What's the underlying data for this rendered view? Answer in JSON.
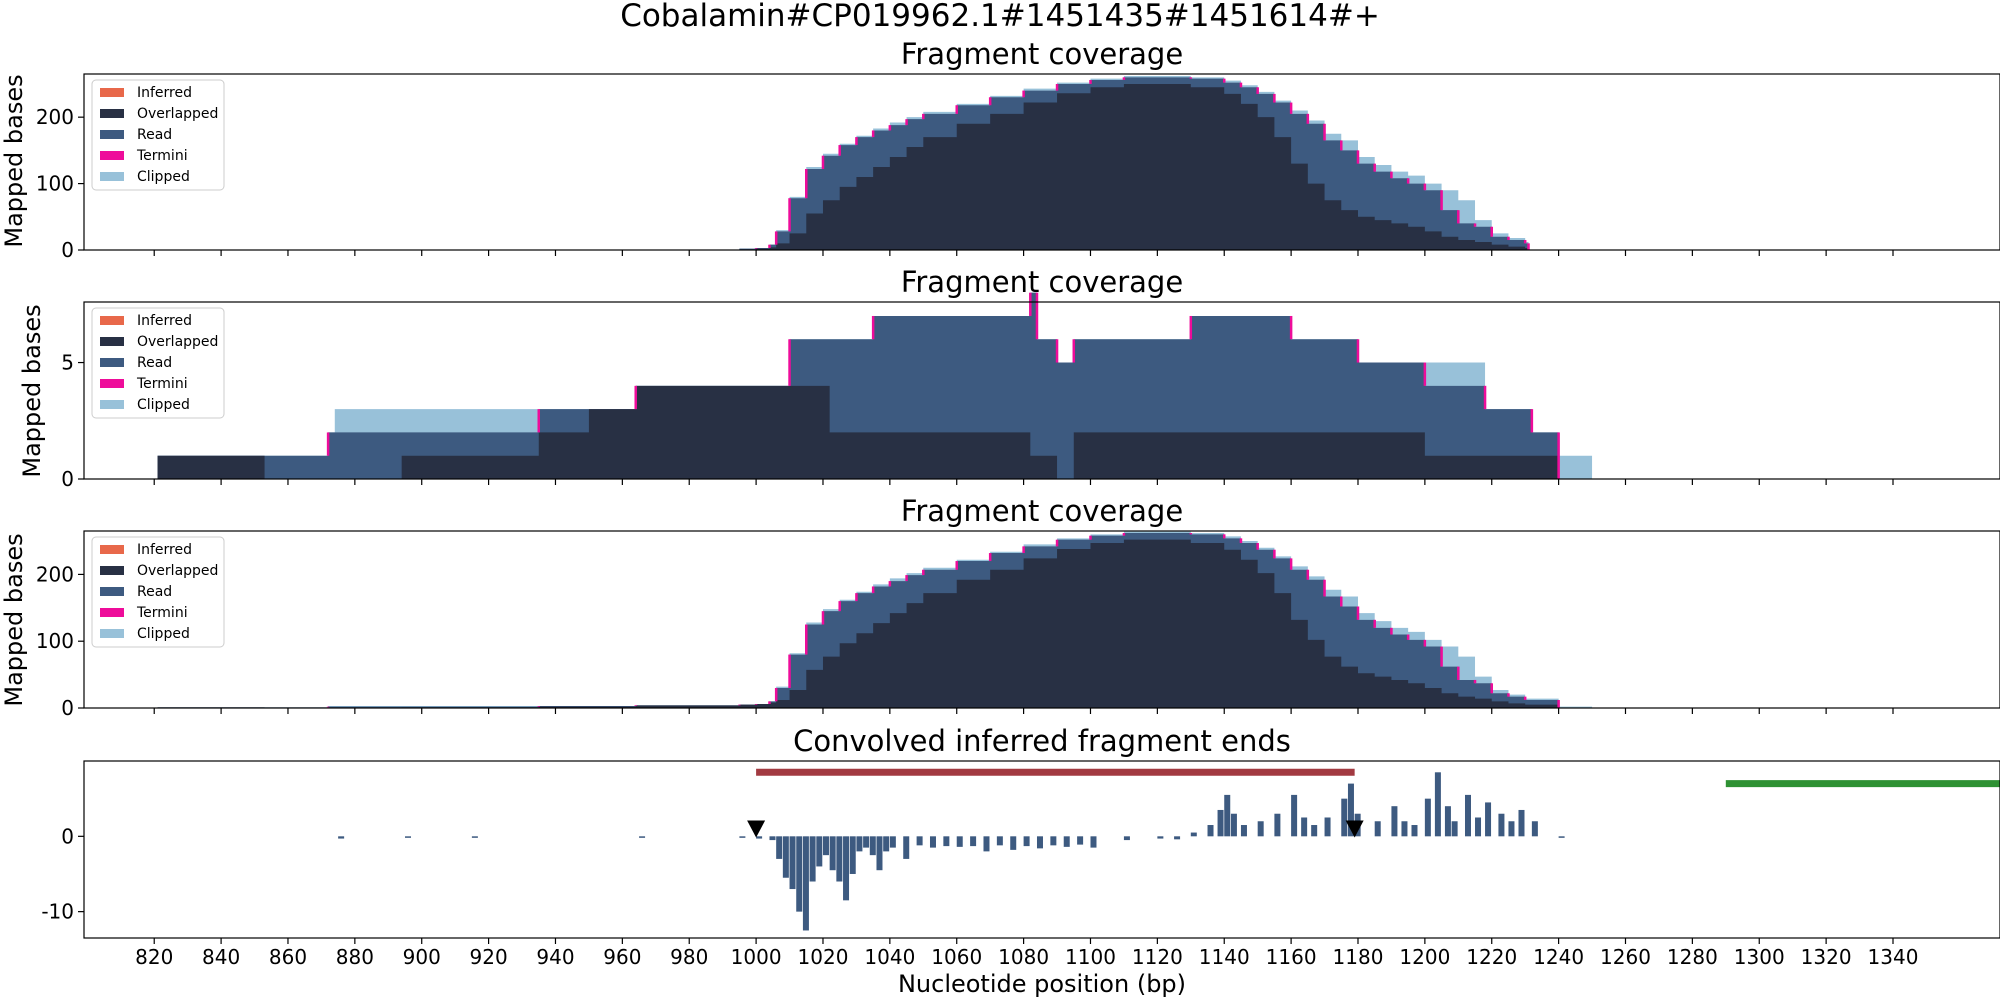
{
  "figure_title": "Cobalamin#CP019962.1#1451435#1451614#+",
  "colors": {
    "inferred": "#e8684a",
    "overlapped": "#283044",
    "read": "#3d5a80",
    "termini": "#ee0c9a",
    "clipped": "#98c1d9",
    "interval_red": "#a23a41",
    "interval_green": "#2e9133",
    "marker": "#000000"
  },
  "legend_entries": [
    "Inferred",
    "Overlapped",
    "Read",
    "Termini",
    "Clipped"
  ],
  "shared_x_axis": {
    "label": "Nucleotide position (bp)",
    "ticks": [
      820,
      840,
      860,
      880,
      900,
      920,
      940,
      960,
      980,
      1000,
      1020,
      1040,
      1060,
      1080,
      1100,
      1120,
      1140,
      1160,
      1180,
      1200,
      1220,
      1240,
      1260,
      1280,
      1300,
      1320,
      1340
    ],
    "xlim": [
      799,
      1372
    ]
  },
  "chart_data": [
    {
      "type": "area",
      "title": "Fragment coverage",
      "ylabel": "Mapped bases",
      "ylim": [
        0,
        265
      ],
      "yticks": [
        0,
        100,
        200
      ],
      "legend_position": "top-left",
      "x": [
        995,
        1000,
        1004,
        1006,
        1010,
        1015,
        1020,
        1025,
        1030,
        1035,
        1040,
        1045,
        1050,
        1060,
        1070,
        1080,
        1090,
        1100,
        1110,
        1120,
        1130,
        1140,
        1145,
        1150,
        1155,
        1160,
        1165,
        1170,
        1175,
        1180,
        1185,
        1190,
        1195,
        1200,
        1205,
        1210,
        1215,
        1220,
        1225,
        1230,
        1231
      ],
      "series": [
        {
          "name": "Clipped",
          "values": [
            2,
            3,
            8,
            30,
            80,
            125,
            145,
            160,
            172,
            183,
            192,
            200,
            208,
            220,
            232,
            243,
            252,
            258,
            262,
            262,
            260,
            255,
            248,
            238,
            225,
            210,
            195,
            175,
            165,
            140,
            128,
            118,
            112,
            100,
            90,
            75,
            45,
            25,
            18,
            12,
            0
          ]
        },
        {
          "name": "Read",
          "values": [
            2,
            3,
            8,
            28,
            78,
            122,
            142,
            158,
            170,
            180,
            188,
            197,
            205,
            218,
            230,
            240,
            250,
            256,
            260,
            260,
            258,
            252,
            245,
            235,
            222,
            205,
            190,
            165,
            150,
            130,
            118,
            108,
            100,
            90,
            60,
            40,
            35,
            20,
            15,
            10,
            0
          ]
        },
        {
          "name": "Overlapped",
          "values": [
            1,
            2,
            4,
            10,
            25,
            55,
            75,
            95,
            110,
            125,
            140,
            155,
            170,
            190,
            205,
            222,
            236,
            245,
            250,
            250,
            245,
            235,
            220,
            200,
            170,
            130,
            100,
            75,
            60,
            50,
            45,
            40,
            35,
            28,
            20,
            15,
            12,
            8,
            5,
            3,
            0
          ]
        }
      ]
    },
    {
      "type": "area",
      "title": "Fragment coverage",
      "ylabel": "Mapped bases",
      "ylim": [
        0,
        7.6
      ],
      "yticks": [
        0,
        5
      ],
      "legend_position": "top-left",
      "x": [
        821,
        853,
        872,
        874,
        894,
        915,
        935,
        950,
        964,
        1010,
        1022,
        1035,
        1060,
        1082,
        1084,
        1090,
        1095,
        1130,
        1150,
        1160,
        1180,
        1200,
        1218,
        1232,
        1240,
        1250
      ],
      "series": [
        {
          "name": "Clipped",
          "values": [
            1,
            1,
            2,
            3,
            3,
            3,
            3,
            3,
            4,
            6,
            6,
            7,
            7,
            8,
            6,
            5,
            6,
            7,
            7,
            6,
            5,
            5,
            3,
            2,
            1,
            0
          ]
        },
        {
          "name": "Read",
          "values": [
            1,
            1,
            2,
            2,
            2,
            2,
            3,
            3,
            4,
            6,
            6,
            7,
            7,
            8,
            6,
            5,
            6,
            7,
            7,
            6,
            5,
            4,
            3,
            2,
            0,
            0
          ]
        },
        {
          "name": "Overlapped",
          "values": [
            1,
            0,
            0,
            0,
            1,
            1,
            2,
            3,
            4,
            4,
            2,
            2,
            2,
            1,
            1,
            0,
            2,
            2,
            2,
            2,
            2,
            1,
            1,
            1,
            0,
            0
          ]
        }
      ]
    },
    {
      "type": "area",
      "title": "Fragment coverage",
      "ylabel": "Mapped bases",
      "ylim": [
        0,
        265
      ],
      "yticks": [
        0,
        100,
        200
      ],
      "legend_position": "top-left",
      "x": [
        821,
        853,
        872,
        894,
        935,
        964,
        995,
        1000,
        1004,
        1006,
        1010,
        1015,
        1020,
        1025,
        1030,
        1035,
        1040,
        1045,
        1050,
        1060,
        1070,
        1080,
        1090,
        1100,
        1110,
        1120,
        1130,
        1140,
        1145,
        1150,
        1155,
        1160,
        1165,
        1170,
        1175,
        1180,
        1185,
        1190,
        1195,
        1200,
        1205,
        1210,
        1215,
        1220,
        1225,
        1230,
        1240,
        1250
      ],
      "series": [
        {
          "name": "Clipped",
          "values": [
            1,
            1,
            3,
            3,
            3,
            4,
            5,
            6,
            10,
            32,
            82,
            128,
            148,
            162,
            174,
            185,
            194,
            202,
            210,
            222,
            234,
            245,
            254,
            260,
            264,
            264,
            262,
            257,
            250,
            240,
            227,
            212,
            197,
            177,
            167,
            142,
            130,
            120,
            114,
            102,
            92,
            77,
            47,
            27,
            20,
            14,
            2,
            0
          ]
        },
        {
          "name": "Read",
          "values": [
            1,
            1,
            2,
            2,
            3,
            4,
            5,
            6,
            10,
            30,
            80,
            125,
            145,
            160,
            172,
            182,
            190,
            199,
            207,
            220,
            232,
            242,
            252,
            258,
            262,
            262,
            260,
            254,
            247,
            237,
            224,
            207,
            192,
            167,
            152,
            132,
            120,
            110,
            102,
            92,
            62,
            42,
            37,
            22,
            17,
            12,
            0,
            0
          ]
        },
        {
          "name": "Overlapped",
          "values": [
            1,
            0,
            0,
            1,
            2,
            4,
            5,
            6,
            8,
            12,
            27,
            57,
            77,
            97,
            112,
            127,
            142,
            157,
            172,
            192,
            207,
            224,
            238,
            247,
            252,
            252,
            247,
            237,
            222,
            202,
            172,
            132,
            102,
            77,
            62,
            52,
            47,
            42,
            37,
            30,
            22,
            17,
            14,
            10,
            7,
            5,
            0,
            0
          ]
        }
      ]
    },
    {
      "type": "bar",
      "title": "Convolved inferred fragment ends",
      "ylabel": "",
      "ylim": [
        -13.5,
        10
      ],
      "yticks": [
        -10,
        0
      ],
      "x": [
        875,
        895,
        915,
        965,
        995,
        1000,
        1004,
        1006,
        1008,
        1010,
        1012,
        1014,
        1016,
        1018,
        1020,
        1022,
        1024,
        1026,
        1028,
        1030,
        1032,
        1034,
        1036,
        1038,
        1040,
        1044,
        1048,
        1052,
        1056,
        1060,
        1064,
        1068,
        1072,
        1076,
        1080,
        1084,
        1088,
        1092,
        1096,
        1100,
        1110,
        1120,
        1125,
        1130,
        1135,
        1138,
        1140,
        1142,
        1145,
        1150,
        1155,
        1160,
        1163,
        1166,
        1170,
        1175,
        1177,
        1179,
        1185,
        1190,
        1193,
        1196,
        1200,
        1203,
        1206,
        1208,
        1212,
        1215,
        1218,
        1222,
        1225,
        1228,
        1232,
        1240
      ],
      "values": [
        -0.3,
        -0.2,
        -0.2,
        -0.2,
        -0.2,
        -0.3,
        -0.5,
        -3,
        -5.5,
        -7,
        -10,
        -12.5,
        -6,
        -4,
        -2.5,
        -4.5,
        -6,
        -8.5,
        -5,
        -2,
        -1.5,
        -2.5,
        -4.5,
        -2,
        -1.5,
        -3,
        -1.2,
        -1.5,
        -1.3,
        -1.4,
        -1.3,
        -2,
        -1.2,
        -1.8,
        -1.3,
        -1.6,
        -1.2,
        -1.4,
        -1.1,
        -1.5,
        -0.5,
        -0.3,
        -0.4,
        0.5,
        1.5,
        3.5,
        5.5,
        3,
        1.5,
        2,
        3,
        5.5,
        2.5,
        1.5,
        2.5,
        5,
        7,
        3,
        2,
        4,
        2,
        1.5,
        5,
        8.5,
        4,
        2,
        5.5,
        2.5,
        4.5,
        3,
        2,
        3.5,
        2,
        -0.2
      ],
      "intervals": [
        {
          "color_key": "interval_red",
          "x_start": 1000,
          "x_end": 1179,
          "y": 8.5
        },
        {
          "color_key": "interval_green",
          "x_start": 1290,
          "x_end": 1372,
          "y": 7
        }
      ],
      "markers": [
        {
          "x": 1000,
          "y": 0.9,
          "shape": "triangle-down"
        },
        {
          "x": 1179,
          "y": 0.9,
          "shape": "triangle-down"
        }
      ]
    }
  ]
}
